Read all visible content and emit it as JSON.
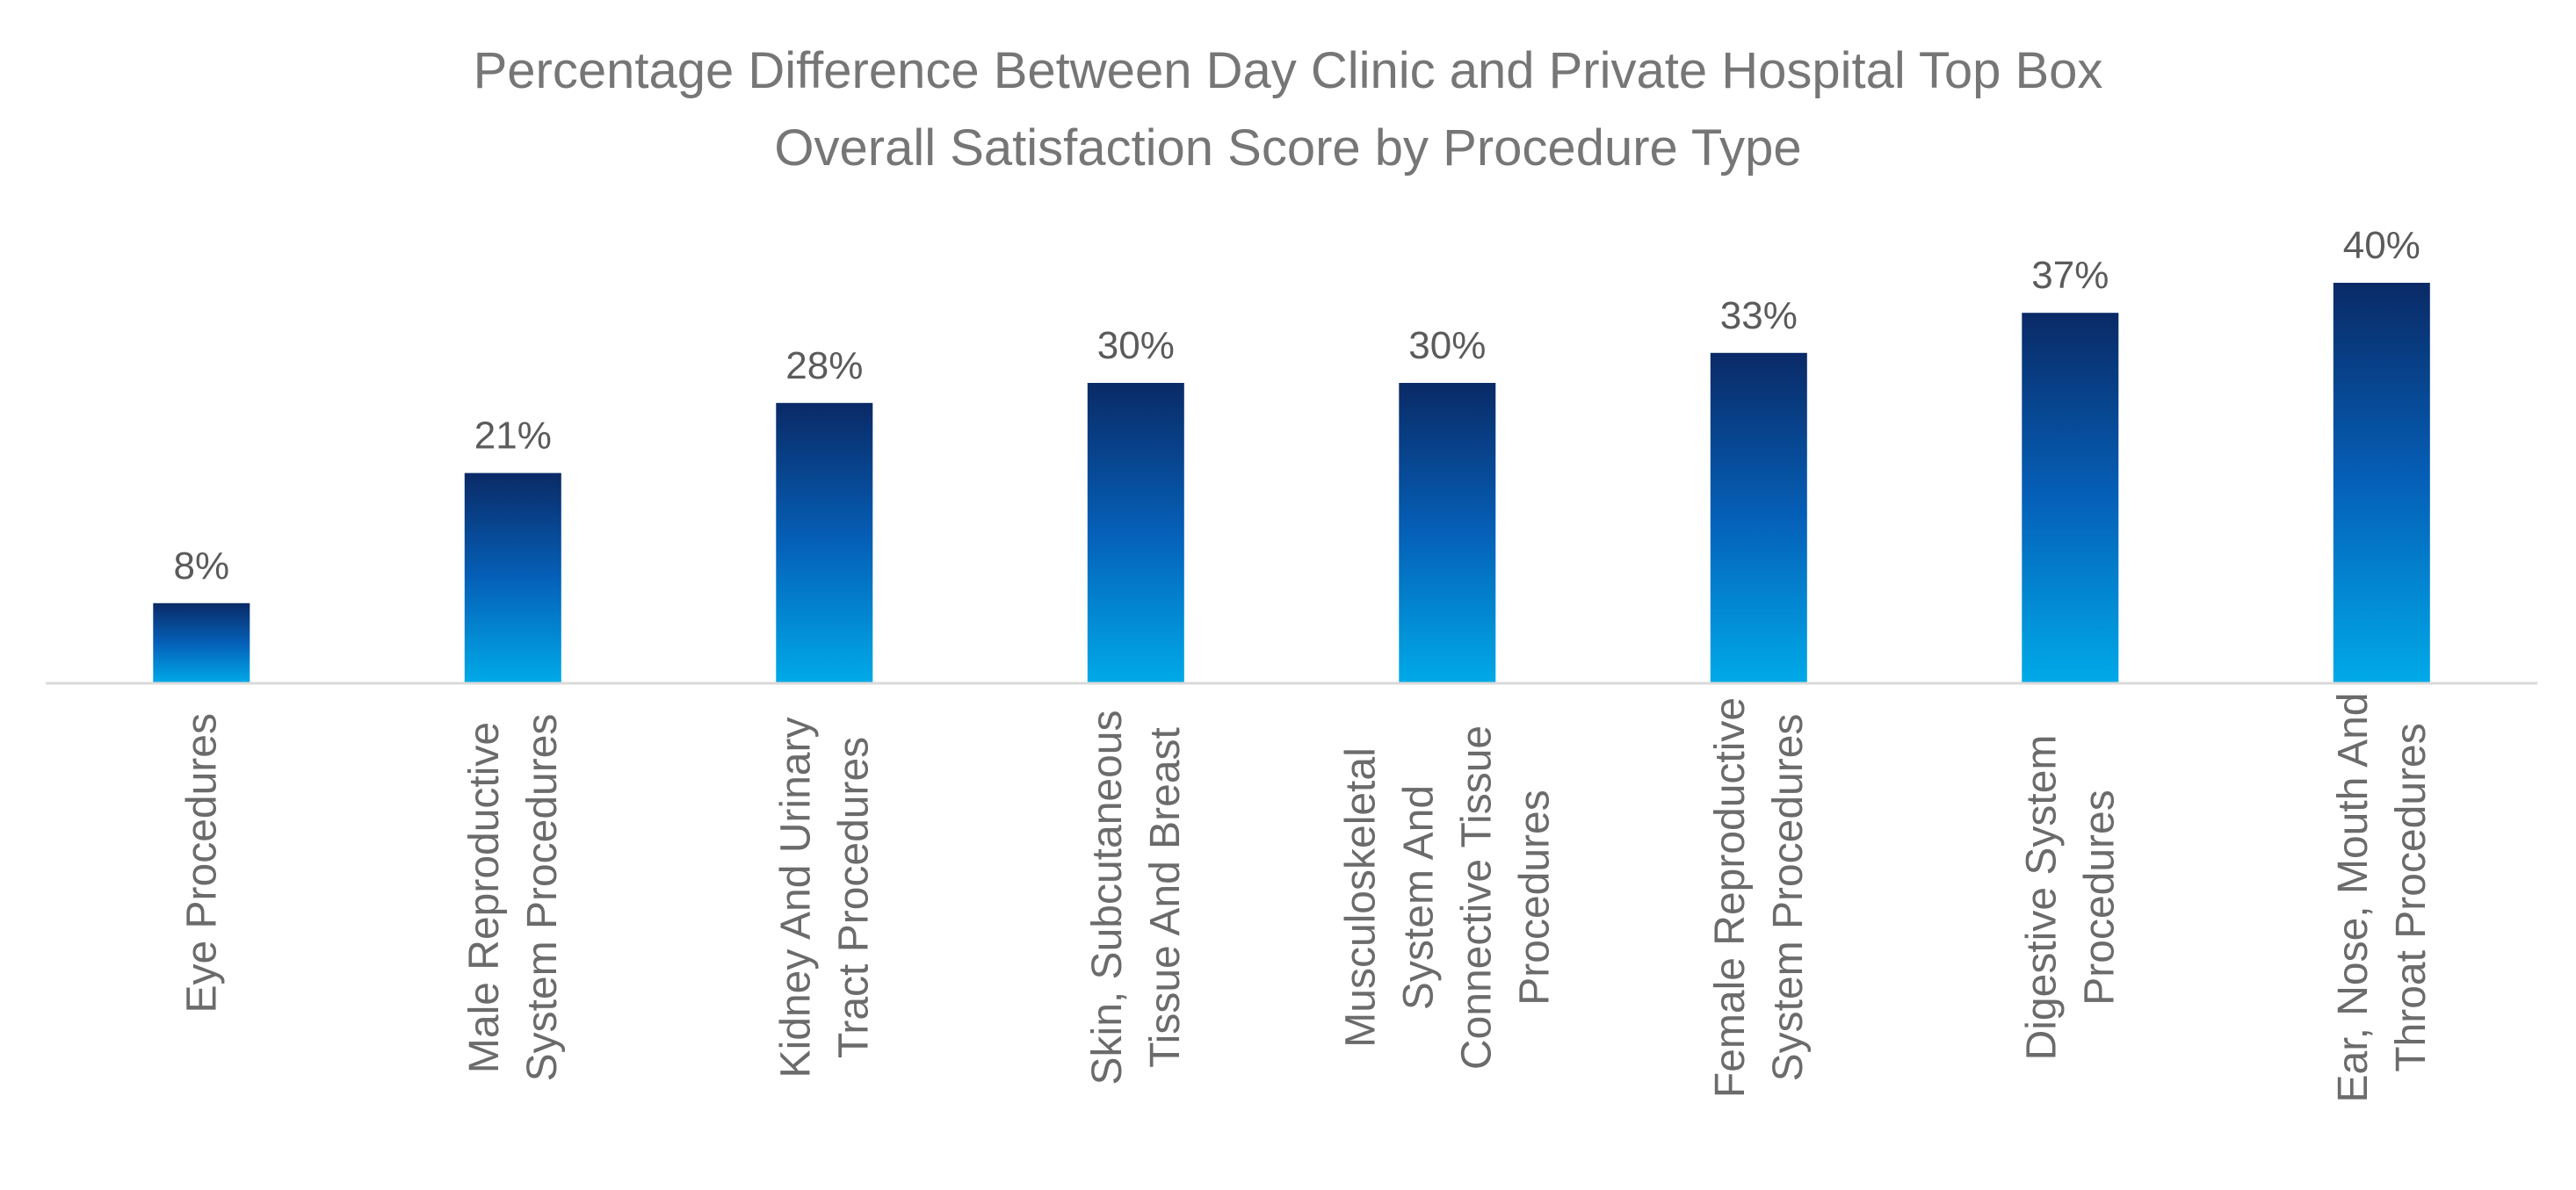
{
  "chart_data": {
    "type": "bar",
    "title_lines": [
      "Percentage Difference Between Day Clinic and Private Hospital Top Box",
      "Overall Satisfaction Score by Procedure Type"
    ],
    "xlabel": "",
    "ylabel": "",
    "ylim": [
      0,
      45
    ],
    "grid": false,
    "legend": "none",
    "bar_color_top": "#0a2a66",
    "bar_color_mid": "#0560b8",
    "bar_color_bottom": "#00aae8",
    "axis_color": "#d9d9d9",
    "categories": [
      [
        "Eye Procedures"
      ],
      [
        "Male Reproductive",
        "System Procedures"
      ],
      [
        "Kidney And Urinary",
        "Tract Procedures"
      ],
      [
        "Skin, Subcutaneous",
        "Tissue And Breast"
      ],
      [
        "Musculoskeletal",
        "System And",
        "Connective Tissue",
        "Procedures"
      ],
      [
        "Female Reproductive",
        "System Procedures"
      ],
      [
        "Digestive System",
        "Procedures"
      ],
      [
        "Ear, Nose, Mouth And",
        "Throat Procedures"
      ]
    ],
    "values": [
      8,
      21,
      28,
      30,
      30,
      33,
      37,
      40
    ],
    "value_labels": [
      "8%",
      "21%",
      "28%",
      "30%",
      "30%",
      "33%",
      "37%",
      "40%"
    ]
  }
}
